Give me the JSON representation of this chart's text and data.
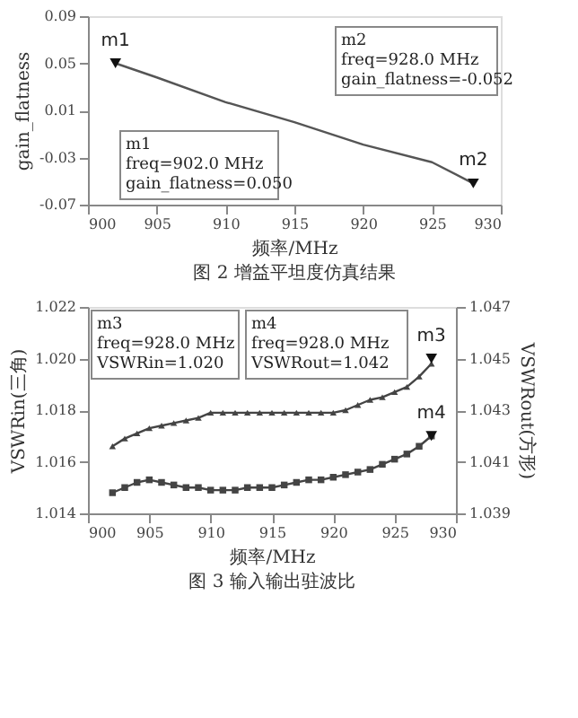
{
  "chart_data": [
    {
      "type": "line",
      "title": "图 2 增益平坦度仿真结果",
      "xlabel": "频率/MHz",
      "ylabel": "gain_flatness",
      "xlim": [
        900,
        930
      ],
      "xticks": [
        900,
        905,
        910,
        915,
        920,
        925,
        930
      ],
      "ylim": [
        -0.07,
        0.09
      ],
      "yticks": [
        -0.07,
        -0.03,
        0.01,
        0.05,
        0.09
      ],
      "marker": "none",
      "series": [
        {
          "color": "#555555",
          "x": [
            902,
            905,
            910,
            915,
            920,
            925,
            928
          ],
          "values": [
            0.05,
            0.038,
            0.017,
            0.0,
            -0.019,
            -0.034,
            -0.052
          ]
        },
        {
          "type": "scatter",
          "color": "#111111",
          "marker": "triangle",
          "x": [
            902,
            928
          ],
          "values": [
            0.05,
            -0.052
          ],
          "value_labels": [
            "m1",
            "m2"
          ]
        }
      ],
      "annotations": [
        "m2\nfreq=928.0 MHz\ngain_flatness=-0.052",
        "m1\nfreq=902.0 MHz\ngain_flatness=0.050"
      ]
    },
    {
      "type": "line",
      "title": "图 3 输入输出驻波比",
      "xlabel": "频率/MHz",
      "ylabel": "VSWRin(三角)",
      "y2label": "VSWRout(方形)",
      "xlim": [
        900,
        930
      ],
      "xticks": [
        900,
        905,
        910,
        915,
        920,
        925,
        930
      ],
      "ylim": [
        1.014,
        1.022
      ],
      "yticks": [
        1.014,
        1.016,
        1.018,
        {
          "value": 1.02,
          "label": "1.020"
        },
        1.022
      ],
      "y2lim": [
        1.039,
        1.047
      ],
      "y2ticks": [
        1.039,
        1.041,
        1.043,
        1.045,
        1.047
      ],
      "series": [
        {
          "color": "#444444",
          "marker": "triangle",
          "x": [
            902,
            903,
            904,
            905,
            906,
            907,
            908,
            909,
            910,
            911,
            912,
            913,
            914,
            915,
            916,
            917,
            918,
            919,
            920,
            921,
            922,
            923,
            924,
            925,
            926,
            927,
            928
          ],
          "values": [
            1.0166,
            1.0169,
            1.0171,
            1.0173,
            1.0174,
            1.0175,
            1.0176,
            1.0177,
            1.0179,
            1.0179,
            1.0179,
            1.0179,
            1.0179,
            1.0179,
            1.0179,
            1.0179,
            1.0179,
            1.0179,
            1.0179,
            1.018,
            1.0182,
            1.0184,
            1.0185,
            1.0187,
            1.0189,
            1.0193,
            1.0198
          ]
        },
        {
          "color": "#444444",
          "marker": "square",
          "axis": "y2",
          "x": [
            902,
            903,
            904,
            905,
            906,
            907,
            908,
            909,
            910,
            911,
            912,
            913,
            914,
            915,
            916,
            917,
            918,
            919,
            920,
            921,
            922,
            923,
            924,
            925,
            926,
            927,
            928
          ],
          "values": [
            1.0398,
            1.04,
            1.0402,
            1.0403,
            1.0402,
            1.0401,
            1.04,
            1.04,
            1.0399,
            1.0399,
            1.0399,
            1.04,
            1.04,
            1.04,
            1.0401,
            1.0402,
            1.0403,
            1.0403,
            1.0404,
            1.0405,
            1.0406,
            1.0407,
            1.0409,
            1.0411,
            1.0413,
            1.0416,
            1.042
          ]
        },
        {
          "type": "scatter",
          "color": "#111111",
          "marker": "triangle",
          "x": [
            928
          ],
          "values": [
            1.02
          ],
          "value_labels": [
            "m3"
          ]
        },
        {
          "type": "scatter",
          "color": "#111111",
          "marker": "triangle",
          "axis": "y2",
          "x": [
            928
          ],
          "values": [
            1.042
          ],
          "value_labels": [
            "m4"
          ]
        }
      ],
      "annotations": [
        "m3\nfreq=928.0 MHz\nVSWRin=1.020",
        "m4\nfreq=928.0 MHz\nVSWRout=1.042"
      ]
    }
  ]
}
